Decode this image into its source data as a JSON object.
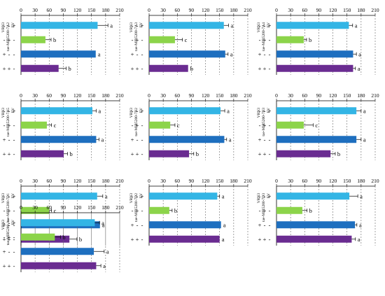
{
  "colors": {
    "ev_only": "#33b5e5",
    "vrn3_only": "#8cd44a",
    "mir_only": "#1e6fbf",
    "vrn3_mir": "#6a2c91"
  },
  "chart_data": [
    {
      "type": "bar",
      "orientation": "horizontal",
      "xlim": [
        0,
        210
      ],
      "ticks": [
        "0",
        "30",
        "60",
        "90",
        "120",
        "150",
        "180",
        "210"
      ],
      "row_labels": [
        "VRN3",
        "tae-MIR5200-7A2",
        "EV"
      ],
      "categories": [
        [
          "-",
          "-",
          "+"
        ],
        [
          "-",
          "+",
          "-"
        ],
        [
          "+",
          "-",
          "-"
        ],
        [
          "+",
          "+",
          "-"
        ]
      ],
      "values": [
        163,
        52,
        159,
        80
      ],
      "errors": [
        22,
        12,
        0,
        16
      ],
      "letters": [
        "a",
        "b",
        "a",
        "b"
      ]
    },
    {
      "type": "bar",
      "orientation": "horizontal",
      "xlim": [
        0,
        210
      ],
      "ticks": [
        "0",
        "30",
        "60",
        "90",
        "120",
        "150",
        "180",
        "210"
      ],
      "row_labels": [
        "VRN3",
        "tae-MIR5200-7A3",
        "EV"
      ],
      "categories": [
        [
          "-",
          "-",
          "+"
        ],
        [
          "-",
          "+",
          "-"
        ],
        [
          "+",
          "-",
          "-"
        ],
        [
          "+",
          "+",
          "-"
        ]
      ],
      "values": [
        159,
        55,
        162,
        83
      ],
      "errors": [
        10,
        16,
        6,
        0
      ],
      "letters": [
        "a",
        "c",
        "a",
        "b"
      ]
    },
    {
      "type": "bar",
      "orientation": "horizontal",
      "xlim": [
        0,
        210
      ],
      "ticks": [
        "0",
        "30",
        "60",
        "90",
        "120",
        "150",
        "180",
        "210"
      ],
      "row_labels": [
        "VRN3",
        "tae-MIR5200-7A4",
        "EV"
      ],
      "categories": [
        [
          "-",
          "-",
          "+"
        ],
        [
          "-",
          "+",
          "-"
        ],
        [
          "+",
          "-",
          "-"
        ],
        [
          "+",
          "+",
          "-"
        ]
      ],
      "values": [
        154,
        58,
        163,
        163
      ],
      "errors": [
        8,
        6,
        7,
        5
      ],
      "letters": [
        "a",
        "b",
        "a",
        "a"
      ]
    },
    {
      "type": "bar",
      "orientation": "horizontal",
      "xlim": [
        0,
        210
      ],
      "ticks": [
        "0",
        "30",
        "60",
        "90",
        "120",
        "150",
        "180",
        "210"
      ],
      "row_labels": [
        "VRN3",
        "tae-MIR5200-7A5",
        "EV"
      ],
      "categories": [
        [
          "-",
          "-",
          "+"
        ],
        [
          "-",
          "+",
          "-"
        ],
        [
          "+",
          "-",
          "-"
        ],
        [
          "+",
          "+",
          "-"
        ]
      ],
      "values": [
        152,
        55,
        160,
        91
      ],
      "errors": [
        8,
        10,
        6,
        8
      ],
      "letters": [
        "a",
        "c",
        "a",
        "b"
      ]
    },
    {
      "type": "bar",
      "orientation": "horizontal",
      "xlim": [
        0,
        210
      ],
      "ticks": [
        "0",
        "30",
        "60",
        "90",
        "120",
        "150",
        "180",
        "210"
      ],
      "row_labels": [
        "VRN3",
        "tae-MIR5200-7B2",
        "EV"
      ],
      "categories": [
        [
          "-",
          "-",
          "+"
        ],
        [
          "-",
          "+",
          "-"
        ],
        [
          "+",
          "-",
          "-"
        ],
        [
          "+",
          "+",
          "-"
        ]
      ],
      "values": [
        152,
        45,
        160,
        85
      ],
      "errors": [
        9,
        10,
        5,
        10
      ],
      "letters": [
        "a",
        "c",
        "a",
        "b"
      ]
    },
    {
      "type": "bar",
      "orientation": "horizontal",
      "xlim": [
        0,
        210
      ],
      "ticks": [
        "0",
        "30",
        "60",
        "90",
        "120",
        "150",
        "180",
        "210"
      ],
      "row_labels": [
        "VRN3",
        "tae-MIR5200-7B3",
        "EV"
      ],
      "categories": [
        [
          "-",
          "-",
          "+"
        ],
        [
          "-",
          "+",
          "-"
        ],
        [
          "+",
          "-",
          "-"
        ],
        [
          "+",
          "+",
          "-"
        ]
      ],
      "values": [
        170,
        58,
        170,
        115
      ],
      "errors": [
        10,
        20,
        10,
        10
      ],
      "letters": [
        "a",
        "c",
        "a",
        "b"
      ]
    },
    {
      "type": "bar",
      "orientation": "horizontal",
      "xlim": [
        0,
        210
      ],
      "ticks": [
        "0",
        "30",
        "60",
        "90",
        "120",
        "150",
        "180",
        "210"
      ],
      "row_labels": [
        "VRN3",
        "tae-MIR5200-7D1",
        "EV"
      ],
      "categories": [
        [
          "-",
          "-",
          "+"
        ],
        [
          "-",
          "+",
          "-"
        ],
        [
          "+",
          "-",
          "-"
        ],
        [
          "+",
          "+",
          "-"
        ]
      ],
      "values": [
        162,
        60,
        168,
        103
      ],
      "errors": [
        12,
        5,
        0,
        16
      ],
      "letters": [
        "a",
        "c",
        "a",
        "b"
      ]
    },
    {
      "type": "bar",
      "orientation": "horizontal",
      "xlim": [
        0,
        210
      ],
      "ticks": [
        "0",
        "30",
        "60",
        "90",
        "120",
        "150",
        "180",
        "210"
      ],
      "row_labels": [
        "VRN3",
        "tae-MIR5200-7D2",
        "EV"
      ],
      "categories": [
        [
          "-",
          "-",
          "+"
        ],
        [
          "-",
          "+",
          "-"
        ],
        [
          "+",
          "-",
          "-"
        ],
        [
          "+",
          "+",
          "-"
        ]
      ],
      "values": [
        145,
        43,
        153,
        150
      ],
      "errors": [
        5,
        6,
        0,
        0
      ],
      "letters": [
        "a",
        "b",
        "a",
        "a"
      ]
    },
    {
      "type": "bar",
      "orientation": "horizontal",
      "xlim": [
        0,
        210
      ],
      "ticks": [
        "0",
        "30",
        "60",
        "90",
        "120",
        "150",
        "180",
        "210"
      ],
      "row_labels": [
        "VRN3",
        "tae-MIR5200-7D3",
        "EV"
      ],
      "categories": [
        [
          "-",
          "-",
          "+"
        ],
        [
          "-",
          "+",
          "-"
        ],
        [
          "+",
          "-",
          "-"
        ],
        [
          "+",
          "+",
          "-"
        ]
      ],
      "values": [
        155,
        55,
        167,
        160
      ],
      "errors": [
        18,
        10,
        4,
        8
      ],
      "letters": [
        "a",
        "b",
        "a",
        "a"
      ]
    },
    {
      "type": "bar",
      "orientation": "horizontal",
      "xlim": [
        0,
        210
      ],
      "ticks": [
        "0",
        "30",
        "60",
        "90",
        "120",
        "150",
        "180",
        "210"
      ],
      "row_labels": [
        "VRN3",
        "tae-MIR5200-1s",
        "EV"
      ],
      "categories": [
        [
          "-",
          "-",
          "+"
        ],
        [
          "-",
          "+",
          "-"
        ],
        [
          "+",
          "-",
          "-"
        ],
        [
          "+",
          "+",
          "-"
        ]
      ],
      "values": [
        157,
        72,
        155,
        160
      ],
      "errors": [
        10,
        12,
        22,
        10
      ],
      "letters": [
        "a",
        "b",
        "a",
        "a"
      ]
    }
  ]
}
